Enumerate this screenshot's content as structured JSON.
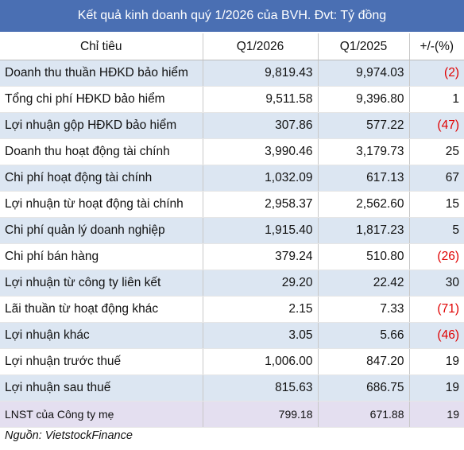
{
  "title": "Kết quả kinh doanh quý 1/2026 của BVH. Đvt: Tỷ đồng",
  "table": {
    "header": [
      "Chỉ tiêu",
      "Q1/2026",
      "Q1/2025",
      "+/-(%)"
    ],
    "rows": [
      [
        "Doanh thu thuần HĐKD bảo hiểm",
        "9,819.43",
        "9,974.03",
        "(2)"
      ],
      [
        "Tổng chi phí HĐKD bảo hiểm",
        "9,511.58",
        "9,396.80",
        "1"
      ],
      [
        "Lợi nhuận gộp HĐKD bảo hiểm",
        "307.86",
        "577.22",
        "(47)"
      ],
      [
        "Doanh thu hoạt động tài chính",
        "3,990.46",
        "3,179.73",
        "25"
      ],
      [
        "Chi phí hoạt động tài chính",
        "1,032.09",
        "617.13",
        "67"
      ],
      [
        "Lợi nhuận từ hoạt động tài chính",
        "2,958.37",
        "2,562.60",
        "15"
      ],
      [
        "Chi phí quản lý doanh nghiệp",
        "1,915.40",
        "1,817.23",
        "5"
      ],
      [
        "Chi phí bán hàng",
        "379.24",
        "510.80",
        "(26)"
      ],
      [
        "Lợi nhuận từ công ty liên kết",
        "29.20",
        "22.42",
        "30"
      ],
      [
        "Lãi thuần từ hoạt động khác",
        "2.15",
        "7.33",
        "(71)"
      ],
      [
        "Lợi nhuận khác",
        "3.05",
        "5.66",
        "(46)"
      ],
      [
        "Lợi nhuận trước thuế",
        "1,006.00",
        "847.20",
        "19"
      ],
      [
        "Lợi nhuận sau thuế",
        "815.63",
        "686.75",
        "19"
      ],
      [
        "LNST của Công ty mẹ",
        "799.18",
        "671.88",
        "19"
      ]
    ]
  },
  "source": "Nguồn: VietstockFinance"
}
